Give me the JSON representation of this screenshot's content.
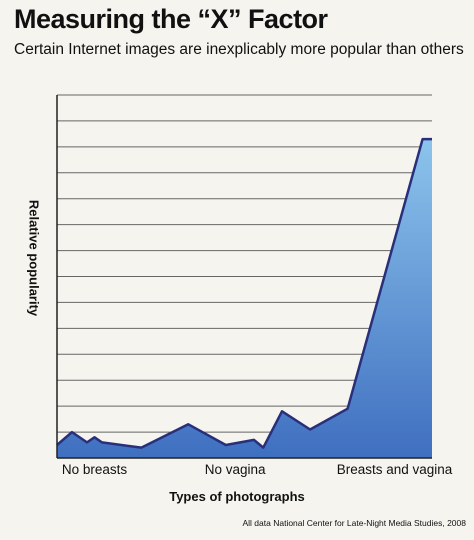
{
  "title": "Measuring the “X” Factor",
  "subtitle": "Certain Internet images are inexplicably more popular than others",
  "credit": "All data National Center for Late-Night Media Studies, 2008",
  "chart_data": {
    "type": "area",
    "ylabel": "Relative popularity",
    "xlabel": "Types of photographs",
    "xlim": [
      0,
      2
    ],
    "ylim": [
      0,
      14
    ],
    "grid": true,
    "categories": [
      "No breasts",
      "No vagina",
      "Breasts and vagina"
    ],
    "category_positions": [
      0.2,
      0.95,
      1.8
    ],
    "fill_color_top": "#8cc4ec",
    "fill_color_bottom": "#3f6fc0",
    "line_color": "#2a2f7a",
    "series": [
      {
        "x": [
          0,
          0.08,
          0.16,
          0.2,
          0.24,
          0.45,
          0.7,
          0.9,
          1.05,
          1.1,
          1.2,
          1.35,
          1.55,
          1.95,
          2.0
        ],
        "y": [
          0.5,
          1.0,
          0.6,
          0.8,
          0.6,
          0.4,
          1.3,
          0.5,
          0.7,
          0.4,
          1.8,
          1.1,
          1.9,
          12.3,
          12.3
        ]
      }
    ]
  }
}
